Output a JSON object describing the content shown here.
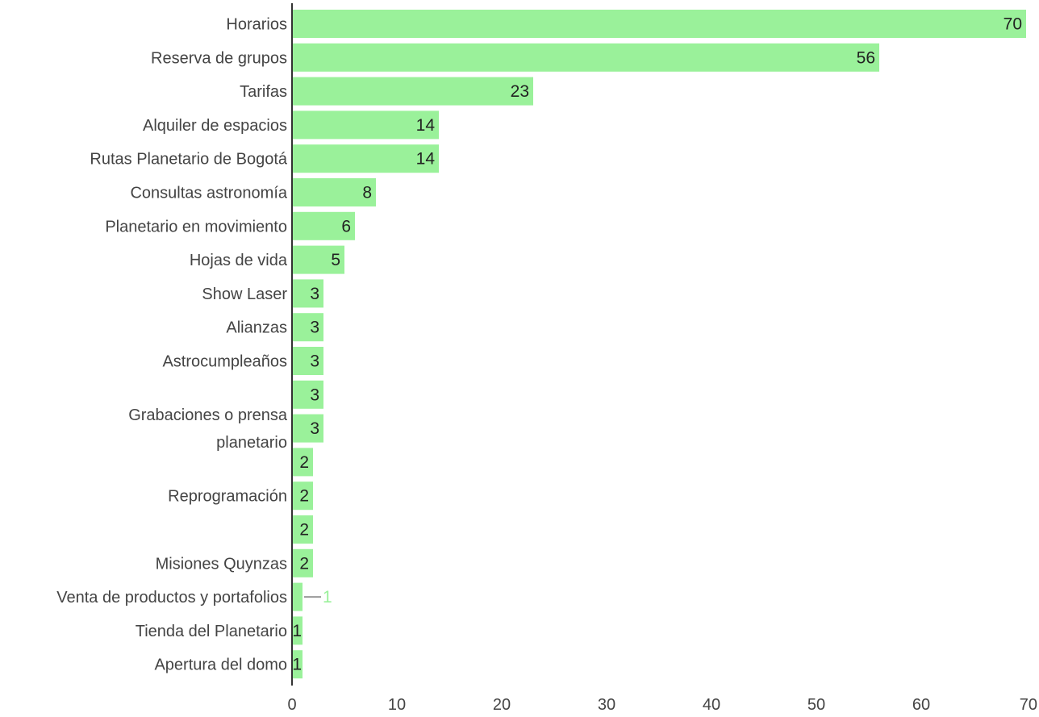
{
  "chart_data": {
    "type": "bar",
    "orientation": "horizontal",
    "bar_color": "#9af19a",
    "axis_color": "#333333",
    "categories": [
      "Horarios",
      "Reserva de grupos",
      "Tarifas",
      "Alquiler de espacios",
      "Rutas Planetario de Bogotá",
      "Consultas astronomía",
      "Planetario en movimiento",
      "Hojas de vida",
      "Show Laser",
      "Alianzas",
      "Astrocumpleaños",
      "",
      "Grabaciones o prensa planetario",
      "",
      "Reprogramación",
      "",
      "Misiones Quynzas",
      "Venta de productos y portafolios",
      "Tienda del Planetario",
      "Apertura del domo"
    ],
    "values": [
      70,
      56,
      23,
      14,
      14,
      8,
      6,
      5,
      3,
      3,
      3,
      3,
      3,
      2,
      2,
      2,
      2,
      1,
      1,
      1
    ],
    "xlim": [
      0,
      70
    ],
    "xticks": [
      0,
      10,
      20,
      30,
      40,
      50,
      60,
      70
    ],
    "grid": false,
    "title": "",
    "xlabel": "",
    "ylabel": ""
  }
}
